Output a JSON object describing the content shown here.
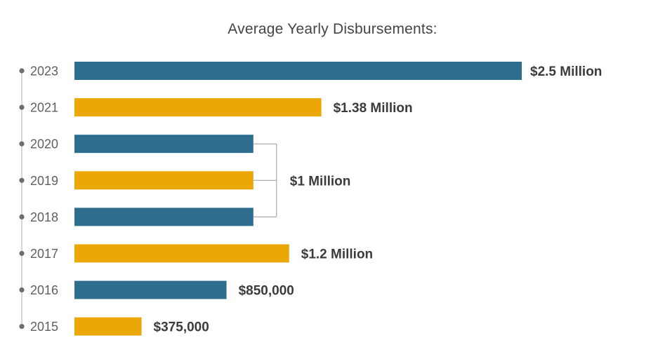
{
  "chart_data": {
    "type": "bar",
    "orientation": "horizontal",
    "title": "Average Yearly Disbursements:",
    "xlabel": "",
    "ylabel": "",
    "grid": false,
    "categories": [
      "2023",
      "2021",
      "2020",
      "2019",
      "2018",
      "2017",
      "2016",
      "2015"
    ],
    "values": [
      2500000,
      1380000,
      1000000,
      1000000,
      1000000,
      1200000,
      850000,
      375000
    ],
    "colors": [
      "#2e6d8e",
      "#eaa706",
      "#2e6d8e",
      "#eaa706",
      "#2e6d8e",
      "#eaa706",
      "#2e6d8e",
      "#eaa706"
    ],
    "data_labels": [
      {
        "text": "$2.5 Million",
        "categories": [
          "2023"
        ]
      },
      {
        "text": "$1.38 Million",
        "categories": [
          "2021"
        ]
      },
      {
        "text": "$1 Million",
        "categories": [
          "2020",
          "2019",
          "2018"
        ]
      },
      {
        "text": "$1.2 Million",
        "categories": [
          "2017"
        ]
      },
      {
        "text": "$850,000",
        "categories": [
          "2016"
        ]
      },
      {
        "text": "$375,000",
        "categories": [
          "2015"
        ]
      }
    ]
  }
}
